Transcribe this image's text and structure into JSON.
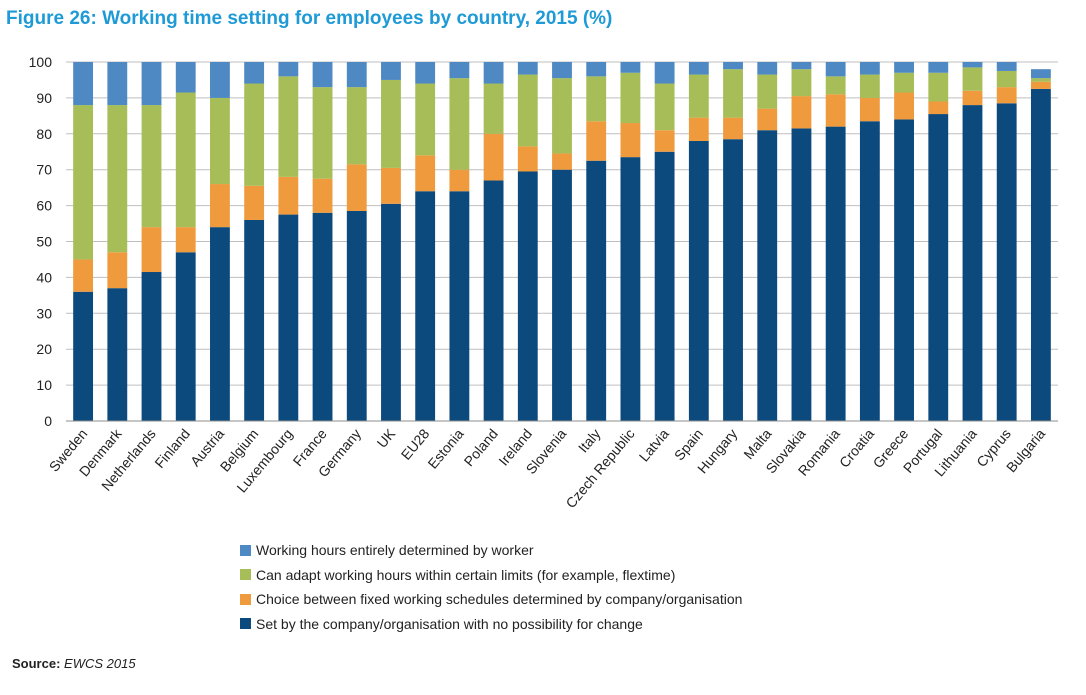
{
  "title": "Figure 26: Working time setting for employees by country, 2015 (%)",
  "source": {
    "label": "Source:",
    "value": "EWCS 2015"
  },
  "colors": {
    "worker": "#4e89c3",
    "adapt": "#a6bd58",
    "choice": "#ef9a3d",
    "set": "#0c4a7e",
    "grid": "#bfbfbf",
    "title": "#1e9ad6"
  },
  "legend": [
    {
      "label": "Working hours entirely determined by worker",
      "color": "#4e89c3"
    },
    {
      "label": "Can adapt working hours within certain limits (for example, flextime)",
      "color": "#a6bd58"
    },
    {
      "label": "Choice between fixed working schedules determined by company/organisation",
      "color": "#ef9a3d"
    },
    {
      "label": "Set by the company/organisation  with no possibility for change",
      "color": "#0c4a7e"
    }
  ],
  "chart_data": {
    "type": "bar",
    "stacked": true,
    "title": "Figure 26: Working time setting for employees by country, 2015 (%)",
    "xlabel": "",
    "ylabel": "",
    "ylim": [
      0,
      100
    ],
    "yticks": [
      0,
      10,
      20,
      30,
      40,
      50,
      60,
      70,
      80,
      90,
      100
    ],
    "grid": true,
    "legend_position": "bottom",
    "categories": [
      "Sweden",
      "Denmark",
      "Netherlands",
      "Finland",
      "Austria",
      "Belgium",
      "Luxembourg",
      "France",
      "Germany",
      "UK",
      "EU28",
      "Estonia",
      "Poland",
      "Ireland",
      "Slovenia",
      "Italy",
      "Czech Republic",
      "Latvia",
      "Spain",
      "Hungary",
      "Malta",
      "Slovakia",
      "Romania",
      "Croatia",
      "Greece",
      "Portugal",
      "Lithuania",
      "Cyprus",
      "Bulgaria"
    ],
    "series": [
      {
        "name": "Set by the company/organisation  with no possibility for change",
        "color": "#0c4a7e",
        "values": [
          36,
          37,
          41.5,
          47,
          54,
          56,
          57.5,
          58,
          58.5,
          60.5,
          64,
          64,
          67,
          69.5,
          70,
          72.5,
          73.5,
          75,
          78,
          78.5,
          81,
          81.5,
          82,
          83.5,
          84,
          85.5,
          88,
          88.5,
          92.5
        ]
      },
      {
        "name": "Choice between fixed working schedules determined by company/organisation",
        "color": "#ef9a3d",
        "values": [
          9,
          10,
          12.5,
          7,
          12,
          9.5,
          10.5,
          9.5,
          13,
          10,
          10,
          6,
          13,
          7,
          4.5,
          11,
          9.5,
          6,
          6.5,
          6,
          6,
          9,
          9,
          6.5,
          7.5,
          3.5,
          4,
          4.5,
          2
        ]
      },
      {
        "name": "Can adapt working hours within certain limits (for example, flextime)",
        "color": "#a6bd58",
        "values": [
          43,
          41,
          34,
          37.5,
          24,
          28.5,
          28,
          25.5,
          21.5,
          24.5,
          20,
          25.5,
          14,
          20,
          21,
          12.5,
          14,
          13,
          12,
          13.5,
          9.5,
          7.5,
          5,
          6.5,
          5.5,
          8,
          6.5,
          4.5,
          1
        ]
      },
      {
        "name": "Working hours entirely determined by worker",
        "color": "#4e89c3",
        "values": [
          12,
          12,
          12,
          8.5,
          10,
          6,
          4,
          7,
          7,
          5,
          6,
          4.5,
          6,
          3.5,
          4.5,
          4,
          3,
          6,
          3.5,
          2,
          3.5,
          2,
          4,
          3.5,
          3,
          3,
          1.5,
          2.5,
          2.5
        ]
      }
    ]
  }
}
